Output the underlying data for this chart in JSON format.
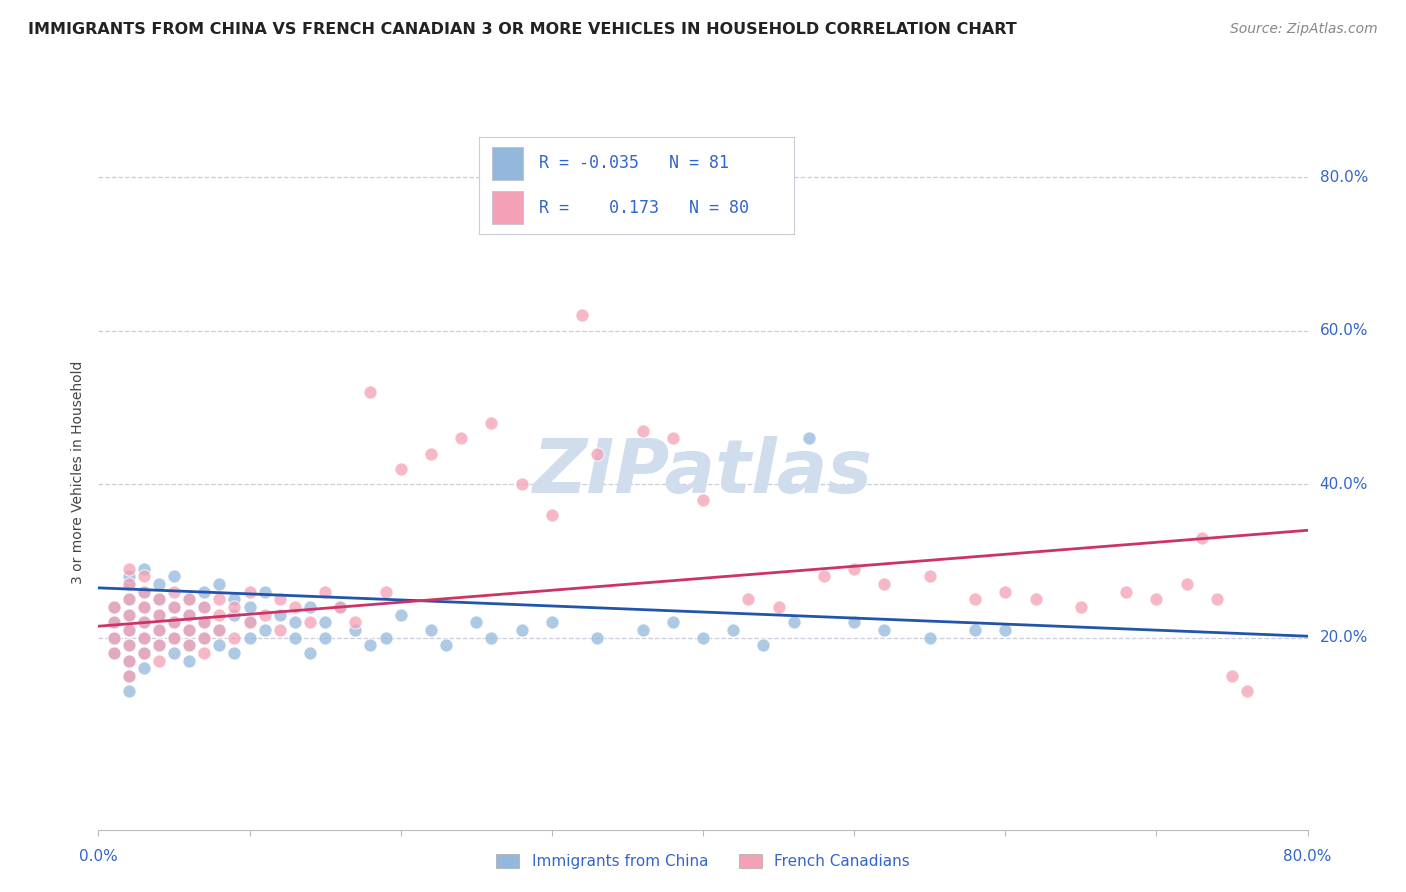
{
  "title": "IMMIGRANTS FROM CHINA VS FRENCH CANADIAN 3 OR MORE VEHICLES IN HOUSEHOLD CORRELATION CHART",
  "source": "Source: ZipAtlas.com",
  "ylabel": "3 or more Vehicles in Household",
  "ytick_labels": [
    "20.0%",
    "40.0%",
    "60.0%",
    "80.0%"
  ],
  "ytick_values": [
    0.2,
    0.4,
    0.6,
    0.8
  ],
  "xmin": 0.0,
  "xmax": 0.8,
  "ymin": -0.05,
  "ymax": 0.88,
  "legend_r_blue": "-0.035",
  "legend_n_blue": "81",
  "legend_r_pink": "0.173",
  "legend_n_pink": "80",
  "label_blue": "Immigrants from China",
  "label_pink": "French Canadians",
  "color_blue": "#93B8DC",
  "color_pink": "#F4A0B5",
  "line_color_blue": "#2255AA",
  "line_color_pink": "#CC3366",
  "legend_text_color": "#3366CC",
  "title_color": "#222222",
  "source_color": "#888888",
  "axis_label_color": "#3366CC",
  "grid_color": "#CCCCDD",
  "watermark_color": "#D0DDED",
  "background_color": "#FFFFFF",
  "title_fontsize": 11.5,
  "source_fontsize": 10,
  "axis_tick_fontsize": 11,
  "ylabel_fontsize": 10,
  "legend_fontsize": 12,
  "blue_x": [
    0.01,
    0.01,
    0.01,
    0.01,
    0.02,
    0.02,
    0.02,
    0.02,
    0.02,
    0.02,
    0.02,
    0.02,
    0.02,
    0.03,
    0.03,
    0.03,
    0.03,
    0.03,
    0.03,
    0.03,
    0.04,
    0.04,
    0.04,
    0.04,
    0.04,
    0.05,
    0.05,
    0.05,
    0.05,
    0.05,
    0.06,
    0.06,
    0.06,
    0.06,
    0.06,
    0.07,
    0.07,
    0.07,
    0.07,
    0.08,
    0.08,
    0.08,
    0.09,
    0.09,
    0.09,
    0.1,
    0.1,
    0.1,
    0.11,
    0.11,
    0.12,
    0.13,
    0.13,
    0.14,
    0.14,
    0.15,
    0.15,
    0.16,
    0.17,
    0.18,
    0.19,
    0.2,
    0.22,
    0.23,
    0.25,
    0.26,
    0.28,
    0.3,
    0.33,
    0.36,
    0.38,
    0.4,
    0.42,
    0.44,
    0.46,
    0.47,
    0.5,
    0.52,
    0.55,
    0.58,
    0.6
  ],
  "blue_y": [
    0.22,
    0.24,
    0.2,
    0.18,
    0.25,
    0.23,
    0.21,
    0.19,
    0.17,
    0.27,
    0.15,
    0.13,
    0.28,
    0.24,
    0.22,
    0.2,
    0.18,
    0.26,
    0.29,
    0.16,
    0.23,
    0.21,
    0.19,
    0.27,
    0.25,
    0.22,
    0.2,
    0.28,
    0.18,
    0.24,
    0.23,
    0.21,
    0.25,
    0.19,
    0.17,
    0.22,
    0.2,
    0.26,
    0.24,
    0.21,
    0.19,
    0.27,
    0.23,
    0.25,
    0.18,
    0.22,
    0.2,
    0.24,
    0.21,
    0.26,
    0.23,
    0.22,
    0.2,
    0.24,
    0.18,
    0.22,
    0.2,
    0.24,
    0.21,
    0.19,
    0.2,
    0.23,
    0.21,
    0.19,
    0.22,
    0.2,
    0.21,
    0.22,
    0.2,
    0.21,
    0.22,
    0.2,
    0.21,
    0.19,
    0.22,
    0.46,
    0.22,
    0.21,
    0.2,
    0.21,
    0.21
  ],
  "pink_x": [
    0.01,
    0.01,
    0.01,
    0.01,
    0.02,
    0.02,
    0.02,
    0.02,
    0.02,
    0.02,
    0.02,
    0.02,
    0.03,
    0.03,
    0.03,
    0.03,
    0.03,
    0.03,
    0.04,
    0.04,
    0.04,
    0.04,
    0.04,
    0.05,
    0.05,
    0.05,
    0.05,
    0.06,
    0.06,
    0.06,
    0.06,
    0.07,
    0.07,
    0.07,
    0.07,
    0.08,
    0.08,
    0.08,
    0.09,
    0.09,
    0.1,
    0.1,
    0.11,
    0.12,
    0.12,
    0.13,
    0.14,
    0.15,
    0.16,
    0.17,
    0.18,
    0.19,
    0.2,
    0.22,
    0.24,
    0.26,
    0.28,
    0.3,
    0.32,
    0.33,
    0.36,
    0.38,
    0.4,
    0.43,
    0.45,
    0.48,
    0.5,
    0.52,
    0.55,
    0.58,
    0.6,
    0.62,
    0.65,
    0.68,
    0.7,
    0.72,
    0.73,
    0.74,
    0.75,
    0.76
  ],
  "pink_y": [
    0.22,
    0.2,
    0.24,
    0.18,
    0.25,
    0.23,
    0.21,
    0.19,
    0.27,
    0.17,
    0.15,
    0.29,
    0.24,
    0.22,
    0.2,
    0.18,
    0.26,
    0.28,
    0.23,
    0.21,
    0.25,
    0.19,
    0.17,
    0.22,
    0.24,
    0.2,
    0.26,
    0.23,
    0.25,
    0.21,
    0.19,
    0.22,
    0.2,
    0.24,
    0.18,
    0.23,
    0.25,
    0.21,
    0.24,
    0.2,
    0.22,
    0.26,
    0.23,
    0.25,
    0.21,
    0.24,
    0.22,
    0.26,
    0.24,
    0.22,
    0.52,
    0.26,
    0.42,
    0.44,
    0.46,
    0.48,
    0.4,
    0.36,
    0.62,
    0.44,
    0.47,
    0.46,
    0.38,
    0.25,
    0.24,
    0.28,
    0.29,
    0.27,
    0.28,
    0.25,
    0.26,
    0.25,
    0.24,
    0.26,
    0.25,
    0.27,
    0.33,
    0.25,
    0.15,
    0.13
  ]
}
